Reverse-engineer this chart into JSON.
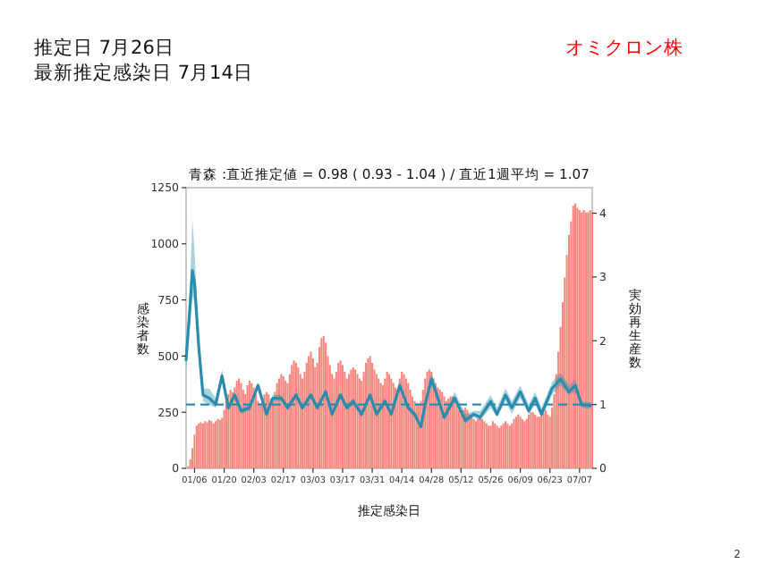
{
  "chart_data": {
    "type": "bar",
    "title": "青森 :直近推定値 = 0.98 ( 0.93 - 1.04 ) / 直近1週平均 = 1.07",
    "annotations": [
      "推定日  7月26日",
      "最新推定感染日  7月14日",
      "オミクロン株",
      "2"
    ],
    "xlabel": "推定感染日",
    "ylabel": "感染者数",
    "y2label": "実効再生産数",
    "xlim": [
      "--01-02",
      "--07-13"
    ],
    "xticks": [
      {
        "value": "--01-06",
        "label": "01/06"
      },
      {
        "value": "--01-20",
        "label": "01/20"
      },
      {
        "value": "--02-03",
        "label": "02/03"
      },
      {
        "value": "--02-17",
        "label": "02/17"
      },
      {
        "value": "--03-03",
        "label": "03/03"
      },
      {
        "value": "--03-17",
        "label": "03/17"
      },
      {
        "value": "--03-31",
        "label": "03/31"
      },
      {
        "value": "--04-14",
        "label": "04/14"
      },
      {
        "value": "--04-28",
        "label": "04/28"
      },
      {
        "value": "--05-12",
        "label": "05/12"
      },
      {
        "value": "--05-26",
        "label": "05/26"
      },
      {
        "value": "--06-09",
        "label": "06/09"
      },
      {
        "value": "--06-23",
        "label": "06/23"
      },
      {
        "value": "--07-07",
        "label": "07/07"
      }
    ],
    "ylim": [
      0,
      1250
    ],
    "yticks": [
      0,
      250,
      500,
      750,
      1000,
      1250
    ],
    "y2lim": [
      0,
      4.4
    ],
    "y2ticks": [
      0,
      1,
      2,
      3,
      4
    ],
    "x": [
      "--01-03",
      "--01-04",
      "--01-05",
      "--01-06",
      "--01-07",
      "--01-08",
      "--01-09",
      "--01-10",
      "--01-11",
      "--01-12",
      "--01-13",
      "--01-14",
      "--01-15",
      "--01-16",
      "--01-17",
      "--01-18",
      "--01-19",
      "--01-20",
      "--01-21",
      "--01-22",
      "--01-23",
      "--01-24",
      "--01-25",
      "--01-26",
      "--01-27",
      "--01-28",
      "--01-29",
      "--01-30",
      "--01-31",
      "--02-01",
      "--02-02",
      "--02-03",
      "--02-04",
      "--02-05",
      "--02-06",
      "--02-07",
      "--02-08",
      "--02-09",
      "--02-10",
      "--02-11",
      "--02-12",
      "--02-13",
      "--02-14",
      "--02-15",
      "--02-16",
      "--02-17",
      "--02-18",
      "--02-19",
      "--02-20",
      "--02-21",
      "--02-22",
      "--02-23",
      "--02-24",
      "--02-25",
      "--02-26",
      "--02-27",
      "--02-28",
      "--03-01",
      "--03-02",
      "--03-03",
      "--03-04",
      "--03-05",
      "--03-06",
      "--03-07",
      "--03-08",
      "--03-09",
      "--03-10",
      "--03-11",
      "--03-12",
      "--03-13",
      "--03-14",
      "--03-15",
      "--03-16",
      "--03-17",
      "--03-18",
      "--03-19",
      "--03-20",
      "--03-21",
      "--03-22",
      "--03-23",
      "--03-24",
      "--03-25",
      "--03-26",
      "--03-27",
      "--03-28",
      "--03-29",
      "--03-30",
      "--03-31",
      "--04-01",
      "--04-02",
      "--04-03",
      "--04-04",
      "--04-05",
      "--04-06",
      "--04-07",
      "--04-08",
      "--04-09",
      "--04-10",
      "--04-11",
      "--04-12",
      "--04-13",
      "--04-14",
      "--04-15",
      "--04-16",
      "--04-17",
      "--04-18",
      "--04-19",
      "--04-20",
      "--04-21",
      "--04-22",
      "--04-23",
      "--04-24",
      "--04-25",
      "--04-26",
      "--04-27",
      "--04-28",
      "--04-29",
      "--04-30",
      "--05-01",
      "--05-02",
      "--05-03",
      "--05-04",
      "--05-05",
      "--05-06",
      "--05-07",
      "--05-08",
      "--05-09",
      "--05-10",
      "--05-11",
      "--05-12",
      "--05-13",
      "--05-14",
      "--05-15",
      "--05-16",
      "--05-17",
      "--05-18",
      "--05-19",
      "--05-20",
      "--05-21",
      "--05-22",
      "--05-23",
      "--05-24",
      "--05-25",
      "--05-26",
      "--05-27",
      "--05-28",
      "--05-29",
      "--05-30",
      "--05-31",
      "--06-01",
      "--06-02",
      "--06-03",
      "--06-04",
      "--06-05",
      "--06-06",
      "--06-07",
      "--06-08",
      "--06-09",
      "--06-10",
      "--06-11",
      "--06-12",
      "--06-13",
      "--06-14",
      "--06-15",
      "--06-16",
      "--06-17",
      "--06-18",
      "--06-19",
      "--06-20",
      "--06-21",
      "--06-22",
      "--06-23",
      "--06-24",
      "--06-25",
      "--06-26",
      "--06-27",
      "--06-28",
      "--06-29",
      "--06-30",
      "--07-01",
      "--07-02",
      "--07-03",
      "--07-04",
      "--07-05",
      "--07-06",
      "--07-07",
      "--07-08",
      "--07-09",
      "--07-10",
      "--07-11",
      "--07-12",
      "--07-13"
    ],
    "series": [
      {
        "color": "#f8877f",
        "values": [
          10,
          40,
          90,
          150,
          190,
          200,
          205,
          200,
          210,
          205,
          215,
          210,
          200,
          210,
          220,
          215,
          225,
          260,
          300,
          330,
          350,
          340,
          360,
          390,
          400,
          380,
          350,
          330,
          370,
          390,
          380,
          360,
          340,
          300,
          290,
          310,
          330,
          340,
          330,
          310,
          300,
          340,
          380,
          400,
          420,
          410,
          390,
          380,
          420,
          460,
          480,
          470,
          450,
          420,
          400,
          430,
          470,
          500,
          520,
          490,
          450,
          470,
          540,
          580,
          590,
          560,
          500,
          460,
          420,
          400,
          430,
          470,
          480,
          460,
          430,
          400,
          420,
          440,
          450,
          440,
          420,
          400,
          390,
          430,
          470,
          490,
          500,
          470,
          440,
          420,
          400,
          380,
          370,
          400,
          430,
          420,
          400,
          380,
          360,
          350,
          400,
          430,
          420,
          400,
          380,
          350,
          320,
          300,
          290,
          280,
          300,
          350,
          400,
          430,
          440,
          430,
          400,
          380,
          360,
          350,
          340,
          320,
          300,
          310,
          320,
          320,
          300,
          280,
          260,
          250,
          260,
          270,
          260,
          240,
          230,
          220,
          210,
          220,
          230,
          220,
          210,
          200,
          190,
          190,
          210,
          200,
          190,
          180,
          190,
          200,
          210,
          200,
          190,
          200,
          220,
          230,
          240,
          230,
          220,
          210,
          220,
          240,
          250,
          250,
          240,
          230,
          230,
          240,
          250,
          260,
          240,
          230,
          270,
          330,
          420,
          520,
          630,
          740,
          850,
          950,
          1040,
          1100,
          1170,
          1180,
          1160,
          1150,
          1140,
          1150,
          1140,
          1140,
          1150,
          1140
        ]
      },
      {
        "type": "line",
        "axis": "y2",
        "color": "#2b8cac",
        "x": [
          "--01-02",
          "--01-04",
          "--01-05",
          "--01-06",
          "--01-08",
          "--01-10",
          "--01-13",
          "--01-16",
          "--01-19",
          "--01-22",
          "--01-25",
          "--01-28",
          "--02-01",
          "--02-05",
          "--02-09",
          "--02-12",
          "--02-16",
          "--02-19",
          "--02-23",
          "--02-26",
          "--03-02",
          "--03-05",
          "--03-09",
          "--03-12",
          "--03-16",
          "--03-19",
          "--03-22",
          "--03-26",
          "--03-30",
          "--04-02",
          "--04-06",
          "--04-09",
          "--04-13",
          "--04-17",
          "--04-20",
          "--04-23",
          "--04-25",
          "--04-28",
          "--04-30",
          "--05-04",
          "--05-09",
          "--05-14",
          "--05-18",
          "--05-21",
          "--05-26",
          "--05-29",
          "--06-02",
          "--06-05",
          "--06-09",
          "--06-13",
          "--06-16",
          "--06-19",
          "--06-24",
          "--06-28",
          "--07-02",
          "--07-05",
          "--07-08",
          "--07-12"
        ],
        "values": [
          1.7,
          2.6,
          3.1,
          2.9,
          1.9,
          1.15,
          1.1,
          1.0,
          1.45,
          0.95,
          1.15,
          0.9,
          0.95,
          1.3,
          0.85,
          1.1,
          1.1,
          0.95,
          1.15,
          0.95,
          1.15,
          0.95,
          1.2,
          0.85,
          1.15,
          0.95,
          1.05,
          0.85,
          1.15,
          0.85,
          1.05,
          0.85,
          1.3,
          0.95,
          0.85,
          0.65,
          1.0,
          1.4,
          1.2,
          0.8,
          1.1,
          0.75,
          0.85,
          0.8,
          1.05,
          0.85,
          1.15,
          0.95,
          1.2,
          0.9,
          1.1,
          0.85,
          1.25,
          1.4,
          1.2,
          1.3,
          1.0,
          0.98
        ],
        "lower": [
          1.55,
          2.3,
          2.7,
          2.6,
          1.8,
          1.05,
          1.0,
          0.95,
          1.35,
          0.9,
          1.1,
          0.85,
          0.9,
          1.25,
          0.8,
          1.05,
          1.05,
          0.9,
          1.1,
          0.9,
          1.1,
          0.9,
          1.15,
          0.8,
          1.1,
          0.9,
          1.0,
          0.8,
          1.1,
          0.8,
          1.0,
          0.8,
          1.25,
          0.9,
          0.8,
          0.6,
          0.95,
          1.3,
          1.15,
          0.75,
          1.05,
          0.7,
          0.8,
          0.75,
          0.95,
          0.8,
          1.05,
          0.85,
          1.1,
          0.85,
          1.0,
          0.8,
          1.15,
          1.3,
          1.15,
          1.2,
          0.95,
          0.93
        ],
        "upper": [
          1.85,
          3.0,
          3.9,
          3.4,
          2.1,
          1.25,
          1.25,
          1.1,
          1.55,
          1.0,
          1.2,
          0.95,
          1.0,
          1.35,
          0.9,
          1.15,
          1.15,
          1.0,
          1.2,
          1.0,
          1.2,
          1.0,
          1.25,
          0.9,
          1.2,
          1.0,
          1.1,
          0.9,
          1.2,
          0.9,
          1.1,
          0.9,
          1.35,
          1.0,
          0.9,
          0.7,
          1.05,
          1.5,
          1.3,
          0.85,
          1.2,
          0.85,
          0.9,
          0.9,
          1.15,
          0.95,
          1.25,
          1.05,
          1.3,
          1.0,
          1.2,
          0.95,
          1.35,
          1.5,
          1.3,
          1.4,
          1.05,
          1.04
        ]
      }
    ],
    "ref_lines": [
      {
        "axis": "y2",
        "value": 1,
        "color": "#2b8cac",
        "line_style": "dashed"
      }
    ]
  }
}
